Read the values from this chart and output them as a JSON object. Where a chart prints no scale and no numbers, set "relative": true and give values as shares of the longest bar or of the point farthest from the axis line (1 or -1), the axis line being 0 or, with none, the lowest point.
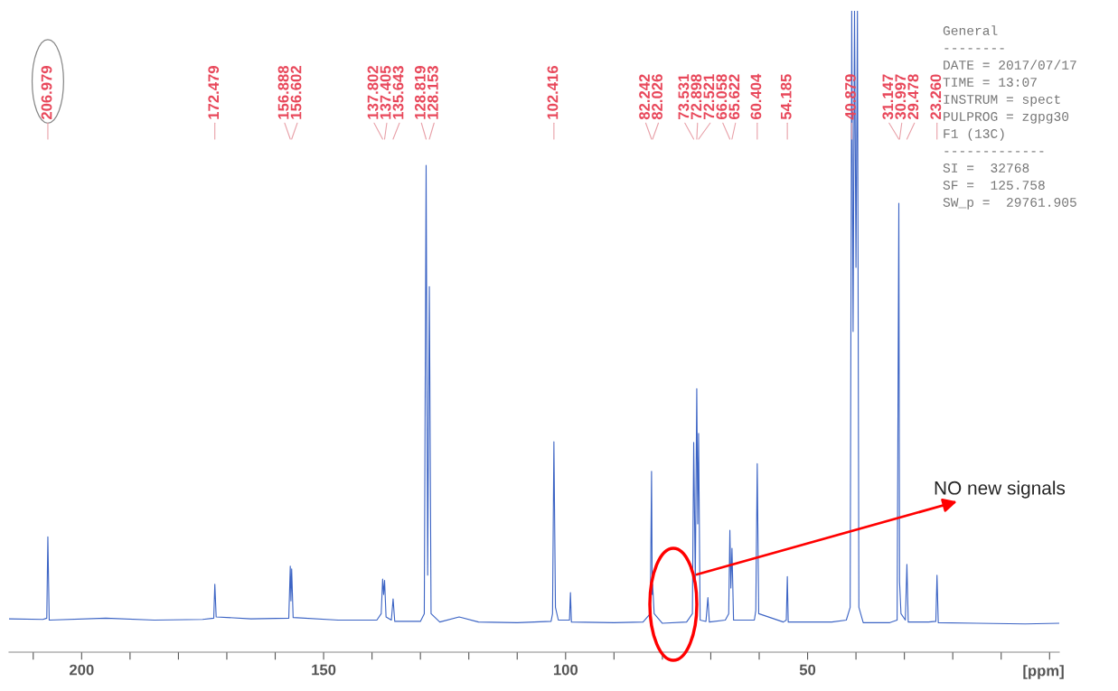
{
  "chart_data": {
    "type": "line",
    "relative": true,
    "xlabel": "[ppm]",
    "xlim": [
      215,
      -2
    ],
    "xticks": [
      {
        "value": 210,
        "label": null
      },
      200,
      {
        "value": 190,
        "label": null
      },
      {
        "value": 180,
        "label": null
      },
      {
        "value": 170,
        "label": null
      },
      {
        "value": 160,
        "label": null
      },
      150,
      {
        "value": 140,
        "label": null
      },
      {
        "value": 130,
        "label": null
      },
      {
        "value": 120,
        "label": null
      },
      {
        "value": 110,
        "label": null
      },
      100,
      {
        "value": 90,
        "label": null
      },
      {
        "value": 80,
        "label": null
      },
      {
        "value": 70,
        "label": null
      },
      {
        "value": 60,
        "label": null
      },
      50,
      {
        "value": 40,
        "label": null
      },
      {
        "value": 30,
        "label": null
      },
      {
        "value": 20,
        "label": null
      },
      {
        "value": 10,
        "label": null
      },
      {
        "value": 0,
        "label": null
      }
    ],
    "grid": false,
    "legend": false,
    "marker": "none",
    "line_style": "solid",
    "series": [
      {
        "color": "#3b63c4",
        "x": [
          215,
          208,
          207.2,
          206.979,
          206.7,
          195,
          185,
          175,
          172.7,
          172.479,
          172.2,
          165,
          157.2,
          156.888,
          156.75,
          156.602,
          156.3,
          147,
          139,
          138.1,
          137.802,
          137.6,
          137.405,
          137.1,
          136,
          135.643,
          135.3,
          130,
          129.2,
          128.819,
          128.5,
          128.153,
          127.8,
          126,
          122,
          118,
          110,
          103,
          102.7,
          102.416,
          102.1,
          101.5,
          99.2,
          99,
          98.8,
          90,
          84,
          82.5,
          82.242,
          82.1,
          82.026,
          81.7,
          80,
          75,
          73.8,
          73.531,
          73.2,
          72.898,
          72.7,
          72.521,
          72.2,
          71.0,
          70.6,
          70.3,
          67,
          66.3,
          66.058,
          65.85,
          65.622,
          65.3,
          61,
          60.7,
          60.404,
          60.1,
          55,
          54.4,
          54.185,
          54,
          45,
          42,
          41.2,
          40.879,
          40.6,
          40.3,
          40.0,
          39.7,
          39.4,
          38.5,
          33,
          31.5,
          31.147,
          30.997,
          30.7,
          29.8,
          29.478,
          29.2,
          25,
          23.5,
          23.26,
          23.0,
          15,
          5,
          -2
        ],
        "values": [
          0.052,
          0.051,
          0.053,
          0.18,
          0.05,
          0.053,
          0.05,
          0.051,
          0.053,
          0.106,
          0.055,
          0.052,
          0.053,
          0.134,
          0.08,
          0.13,
          0.054,
          0.05,
          0.05,
          0.06,
          0.114,
          0.09,
          0.112,
          0.055,
          0.05,
          0.083,
          0.048,
          0.048,
          0.06,
          0.759,
          0.12,
          0.57,
          0.06,
          0.047,
          0.055,
          0.047,
          0.046,
          0.048,
          0.06,
          0.328,
          0.07,
          0.05,
          0.05,
          0.093,
          0.047,
          0.046,
          0.047,
          0.06,
          0.282,
          0.09,
          0.106,
          0.06,
          0.045,
          0.047,
          0.06,
          0.327,
          0.11,
          0.411,
          0.2,
          0.341,
          0.05,
          0.048,
          0.085,
          0.047,
          0.05,
          0.06,
          0.19,
          0.1,
          0.162,
          0.05,
          0.05,
          0.065,
          0.294,
          0.06,
          0.047,
          0.05,
          0.118,
          0.047,
          0.047,
          0.05,
          0.07,
          1.0,
          0.5,
          1.0,
          0.6,
          1.0,
          0.07,
          0.046,
          0.046,
          0.05,
          0.7,
          0.11,
          0.06,
          0.05,
          0.137,
          0.047,
          0.047,
          0.048,
          0.12,
          0.046,
          0.045,
          0.044,
          0.045
        ]
      }
    ],
    "annotations": [
      {
        "text": "206.979",
        "x": 206.979
      },
      {
        "text": "172.479",
        "x": 172.479
      },
      {
        "text": "156.888",
        "x": 156.888
      },
      {
        "text": "156.602",
        "x": 156.602
      },
      {
        "text": "137.802",
        "x": 137.802
      },
      {
        "text": "137.405",
        "x": 137.405
      },
      {
        "text": "135.643",
        "x": 135.643
      },
      {
        "text": "128.819",
        "x": 128.819
      },
      {
        "text": "128.153",
        "x": 128.153
      },
      {
        "text": "102.416",
        "x": 102.416
      },
      {
        "text": "82.242",
        "x": 82.242
      },
      {
        "text": "82.026",
        "x": 82.026
      },
      {
        "text": "73.531",
        "x": 73.531
      },
      {
        "text": "72.898",
        "x": 72.898
      },
      {
        "text": "72.521",
        "x": 72.521
      },
      {
        "text": "66.058",
        "x": 66.058
      },
      {
        "text": "65.622",
        "x": 65.622
      },
      {
        "text": "60.404",
        "x": 60.404
      },
      {
        "text": "54.185",
        "x": 54.185
      },
      {
        "text": "40.879",
        "x": 40.879
      },
      {
        "text": "31.147",
        "x": 31.147
      },
      {
        "text": "30.997",
        "x": 30.997
      },
      {
        "text": "29.478",
        "x": 29.478
      },
      {
        "text": "23.260",
        "x": 23.26
      },
      "General",
      "--------",
      "DATE = 2017/07/17",
      "TIME = 13:07",
      "INSTRUM = spect",
      "PULPROG = zgpg30",
      "F1 (13C)",
      "-------------",
      "SI =  32768",
      "SF =  125.758",
      "SW_p =  29761.905",
      "NO new signals"
    ]
  }
}
